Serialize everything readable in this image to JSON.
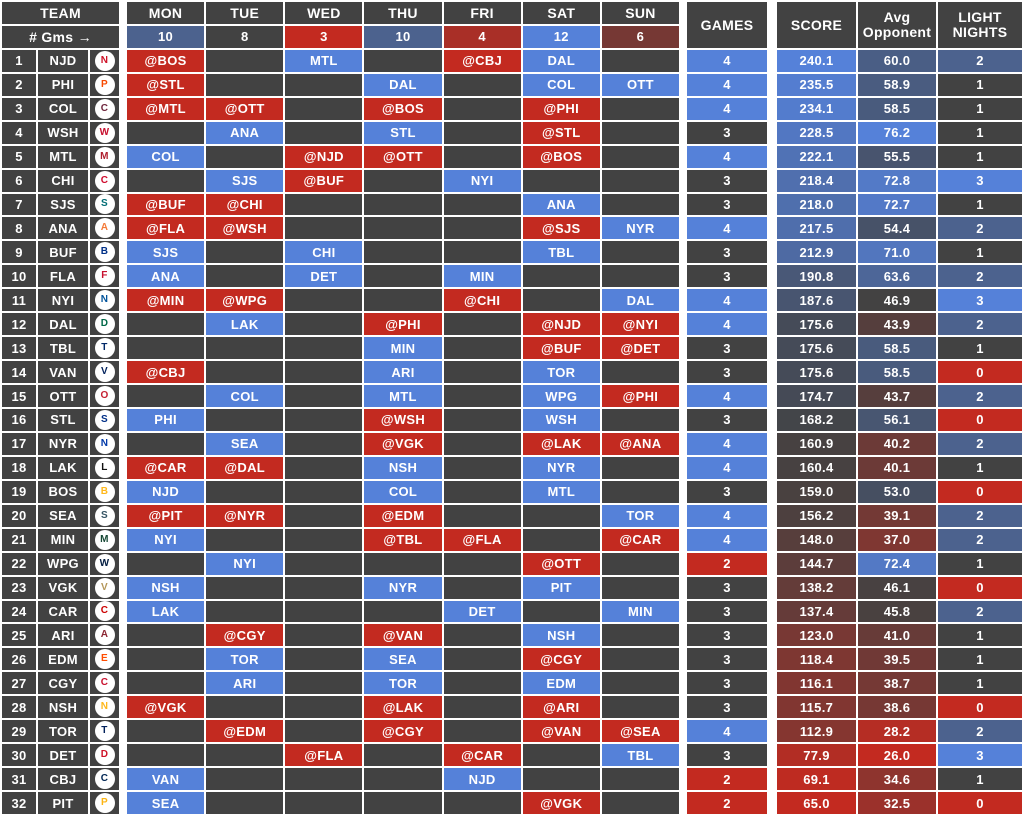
{
  "chart_data": {
    "type": "table",
    "corner": {
      "team_label": "TEAM",
      "gms_label": "# Gms →"
    },
    "day_columns": [
      {
        "label": "MON",
        "games": 10
      },
      {
        "label": "TUE",
        "games": 8
      },
      {
        "label": "WED",
        "games": 3
      },
      {
        "label": "THU",
        "games": 10
      },
      {
        "label": "FRI",
        "games": 4
      },
      {
        "label": "SAT",
        "games": 12
      },
      {
        "label": "SUN",
        "games": 6
      }
    ],
    "summary_headers": {
      "games": "GAMES",
      "score": "SCORE",
      "avg_opponent": "Avg Opponent",
      "light_nights": "LIGHT NIGHTS"
    },
    "colors": {
      "cell_gray": "#424242",
      "home_blue": "#5581d9",
      "away_red": "#c32a20",
      "text": "#ffffff"
    },
    "teams": [
      {
        "rank": "1",
        "abbr": "NJD",
        "logo_color": "#ce1126",
        "games": {
          "mon": "@BOS",
          "wed": "MTL",
          "fri": "@CBJ",
          "sat": "DAL"
        },
        "games_count": "4",
        "score": "240.1",
        "avg_opponent": "60.0",
        "light_nights": "2"
      },
      {
        "rank": "2",
        "abbr": "PHI",
        "logo_color": "#f74902",
        "games": {
          "mon": "@STL",
          "thu": "DAL",
          "sat": "COL",
          "sun": "OTT"
        },
        "games_count": "4",
        "score": "235.5",
        "avg_opponent": "58.9",
        "light_nights": "1"
      },
      {
        "rank": "3",
        "abbr": "COL",
        "logo_color": "#6f263d",
        "games": {
          "mon": "@MTL",
          "tue": "@OTT",
          "thu": "@BOS",
          "sat": "@PHI"
        },
        "games_count": "4",
        "score": "234.1",
        "avg_opponent": "58.5",
        "light_nights": "1"
      },
      {
        "rank": "4",
        "abbr": "WSH",
        "logo_color": "#c8102e",
        "games": {
          "tue": "ANA",
          "thu": "STL",
          "sat": "@STL"
        },
        "games_count": "3",
        "score": "228.5",
        "avg_opponent": "76.2",
        "light_nights": "1"
      },
      {
        "rank": "5",
        "abbr": "MTL",
        "logo_color": "#af1e2d",
        "games": {
          "mon": "COL",
          "wed": "@NJD",
          "thu": "@OTT",
          "sat": "@BOS"
        },
        "games_count": "4",
        "score": "222.1",
        "avg_opponent": "55.5",
        "light_nights": "1"
      },
      {
        "rank": "6",
        "abbr": "CHI",
        "logo_color": "#cf0a2c",
        "games": {
          "tue": "SJS",
          "wed": "@BUF",
          "fri": "NYI"
        },
        "games_count": "3",
        "score": "218.4",
        "avg_opponent": "72.8",
        "light_nights": "3"
      },
      {
        "rank": "7",
        "abbr": "SJS",
        "logo_color": "#006d75",
        "games": {
          "mon": "@BUF",
          "tue": "@CHI",
          "sat": "ANA"
        },
        "games_count": "3",
        "score": "218.0",
        "avg_opponent": "72.7",
        "light_nights": "1"
      },
      {
        "rank": "8",
        "abbr": "ANA",
        "logo_color": "#f47a38",
        "games": {
          "mon": "@FLA",
          "tue": "@WSH",
          "sat": "@SJS",
          "sun": "NYR"
        },
        "games_count": "4",
        "score": "217.5",
        "avg_opponent": "54.4",
        "light_nights": "2"
      },
      {
        "rank": "9",
        "abbr": "BUF",
        "logo_color": "#003087",
        "games": {
          "mon": "SJS",
          "wed": "CHI",
          "sat": "TBL"
        },
        "games_count": "3",
        "score": "212.9",
        "avg_opponent": "71.0",
        "light_nights": "1"
      },
      {
        "rank": "10",
        "abbr": "FLA",
        "logo_color": "#c8102e",
        "games": {
          "mon": "ANA",
          "wed": "DET",
          "fri": "MIN"
        },
        "games_count": "3",
        "score": "190.8",
        "avg_opponent": "63.6",
        "light_nights": "2"
      },
      {
        "rank": "11",
        "abbr": "NYI",
        "logo_color": "#00539b",
        "games": {
          "mon": "@MIN",
          "tue": "@WPG",
          "fri": "@CHI",
          "sun": "DAL"
        },
        "games_count": "4",
        "score": "187.6",
        "avg_opponent": "46.9",
        "light_nights": "3"
      },
      {
        "rank": "12",
        "abbr": "DAL",
        "logo_color": "#006847",
        "games": {
          "tue": "LAK",
          "thu": "@PHI",
          "sat": "@NJD",
          "sun": "@NYI"
        },
        "games_count": "4",
        "score": "175.6",
        "avg_opponent": "43.9",
        "light_nights": "2"
      },
      {
        "rank": "13",
        "abbr": "TBL",
        "logo_color": "#002868",
        "games": {
          "thu": "MIN",
          "sat": "@BUF",
          "sun": "@DET"
        },
        "games_count": "3",
        "score": "175.6",
        "avg_opponent": "58.5",
        "light_nights": "1"
      },
      {
        "rank": "14",
        "abbr": "VAN",
        "logo_color": "#00205b",
        "games": {
          "mon": "@CBJ",
          "thu": "ARI",
          "sat": "TOR"
        },
        "games_count": "3",
        "score": "175.6",
        "avg_opponent": "58.5",
        "light_nights": "0"
      },
      {
        "rank": "15",
        "abbr": "OTT",
        "logo_color": "#c52032",
        "games": {
          "tue": "COL",
          "thu": "MTL",
          "sat": "WPG",
          "sun": "@PHI"
        },
        "games_count": "4",
        "score": "174.7",
        "avg_opponent": "43.7",
        "light_nights": "2"
      },
      {
        "rank": "16",
        "abbr": "STL",
        "logo_color": "#002f87",
        "games": {
          "mon": "PHI",
          "thu": "@WSH",
          "sat": "WSH"
        },
        "games_count": "3",
        "score": "168.2",
        "avg_opponent": "56.1",
        "light_nights": "0"
      },
      {
        "rank": "17",
        "abbr": "NYR",
        "logo_color": "#0038a8",
        "games": {
          "tue": "SEA",
          "thu": "@VGK",
          "sat": "@LAK",
          "sun": "@ANA"
        },
        "games_count": "4",
        "score": "160.9",
        "avg_opponent": "40.2",
        "light_nights": "2"
      },
      {
        "rank": "18",
        "abbr": "LAK",
        "logo_color": "#111111",
        "games": {
          "mon": "@CAR",
          "tue": "@DAL",
          "thu": "NSH",
          "sat": "NYR"
        },
        "games_count": "4",
        "score": "160.4",
        "avg_opponent": "40.1",
        "light_nights": "1"
      },
      {
        "rank": "19",
        "abbr": "BOS",
        "logo_color": "#ffb81c",
        "games": {
          "mon": "NJD",
          "thu": "COL",
          "sat": "MTL"
        },
        "games_count": "3",
        "score": "159.0",
        "avg_opponent": "53.0",
        "light_nights": "0"
      },
      {
        "rank": "20",
        "abbr": "SEA",
        "logo_color": "#355464",
        "games": {
          "mon": "@PIT",
          "tue": "@NYR",
          "thu": "@EDM",
          "sun": "TOR"
        },
        "games_count": "4",
        "score": "156.2",
        "avg_opponent": "39.1",
        "light_nights": "2"
      },
      {
        "rank": "21",
        "abbr": "MIN",
        "logo_color": "#154734",
        "games": {
          "mon": "NYI",
          "thu": "@TBL",
          "fri": "@FLA",
          "sun": "@CAR"
        },
        "games_count": "4",
        "score": "148.0",
        "avg_opponent": "37.0",
        "light_nights": "2"
      },
      {
        "rank": "22",
        "abbr": "WPG",
        "logo_color": "#041e42",
        "games": {
          "tue": "NYI",
          "sat": "@OTT"
        },
        "games_count": "2",
        "score": "144.7",
        "avg_opponent": "72.4",
        "light_nights": "1"
      },
      {
        "rank": "23",
        "abbr": "VGK",
        "logo_color": "#b4975a",
        "games": {
          "mon": "NSH",
          "thu": "NYR",
          "sat": "PIT"
        },
        "games_count": "3",
        "score": "138.2",
        "avg_opponent": "46.1",
        "light_nights": "0"
      },
      {
        "rank": "24",
        "abbr": "CAR",
        "logo_color": "#cc0000",
        "games": {
          "mon": "LAK",
          "fri": "DET",
          "sun": "MIN"
        },
        "games_count": "3",
        "score": "137.4",
        "avg_opponent": "45.8",
        "light_nights": "2"
      },
      {
        "rank": "25",
        "abbr": "ARI",
        "logo_color": "#8c2633",
        "games": {
          "tue": "@CGY",
          "thu": "@VAN",
          "sat": "NSH"
        },
        "games_count": "3",
        "score": "123.0",
        "avg_opponent": "41.0",
        "light_nights": "1"
      },
      {
        "rank": "26",
        "abbr": "EDM",
        "logo_color": "#ff4c00",
        "games": {
          "tue": "TOR",
          "thu": "SEA",
          "sat": "@CGY"
        },
        "games_count": "3",
        "score": "118.4",
        "avg_opponent": "39.5",
        "light_nights": "1"
      },
      {
        "rank": "27",
        "abbr": "CGY",
        "logo_color": "#c8102e",
        "games": {
          "tue": "ARI",
          "thu": "TOR",
          "sat": "EDM"
        },
        "games_count": "3",
        "score": "116.1",
        "avg_opponent": "38.7",
        "light_nights": "1"
      },
      {
        "rank": "28",
        "abbr": "NSH",
        "logo_color": "#ffb81c",
        "games": {
          "mon": "@VGK",
          "thu": "@LAK",
          "sat": "@ARI"
        },
        "games_count": "3",
        "score": "115.7",
        "avg_opponent": "38.6",
        "light_nights": "0"
      },
      {
        "rank": "29",
        "abbr": "TOR",
        "logo_color": "#00205b",
        "games": {
          "tue": "@EDM",
          "thu": "@CGY",
          "sat": "@VAN",
          "sun": "@SEA"
        },
        "games_count": "4",
        "score": "112.9",
        "avg_opponent": "28.2",
        "light_nights": "2"
      },
      {
        "rank": "30",
        "abbr": "DET",
        "logo_color": "#ce1126",
        "games": {
          "wed": "@FLA",
          "fri": "@CAR",
          "sun": "TBL"
        },
        "games_count": "3",
        "score": "77.9",
        "avg_opponent": "26.0",
        "light_nights": "3"
      },
      {
        "rank": "31",
        "abbr": "CBJ",
        "logo_color": "#002654",
        "games": {
          "mon": "VAN",
          "fri": "NJD"
        },
        "games_count": "2",
        "score": "69.1",
        "avg_opponent": "34.6",
        "light_nights": "1"
      },
      {
        "rank": "32",
        "abbr": "PIT",
        "logo_color": "#fcb514",
        "games": {
          "mon": "SEA",
          "sat": "@VGK"
        },
        "games_count": "2",
        "score": "65.0",
        "avg_opponent": "32.5",
        "light_nights": "0"
      }
    ]
  }
}
